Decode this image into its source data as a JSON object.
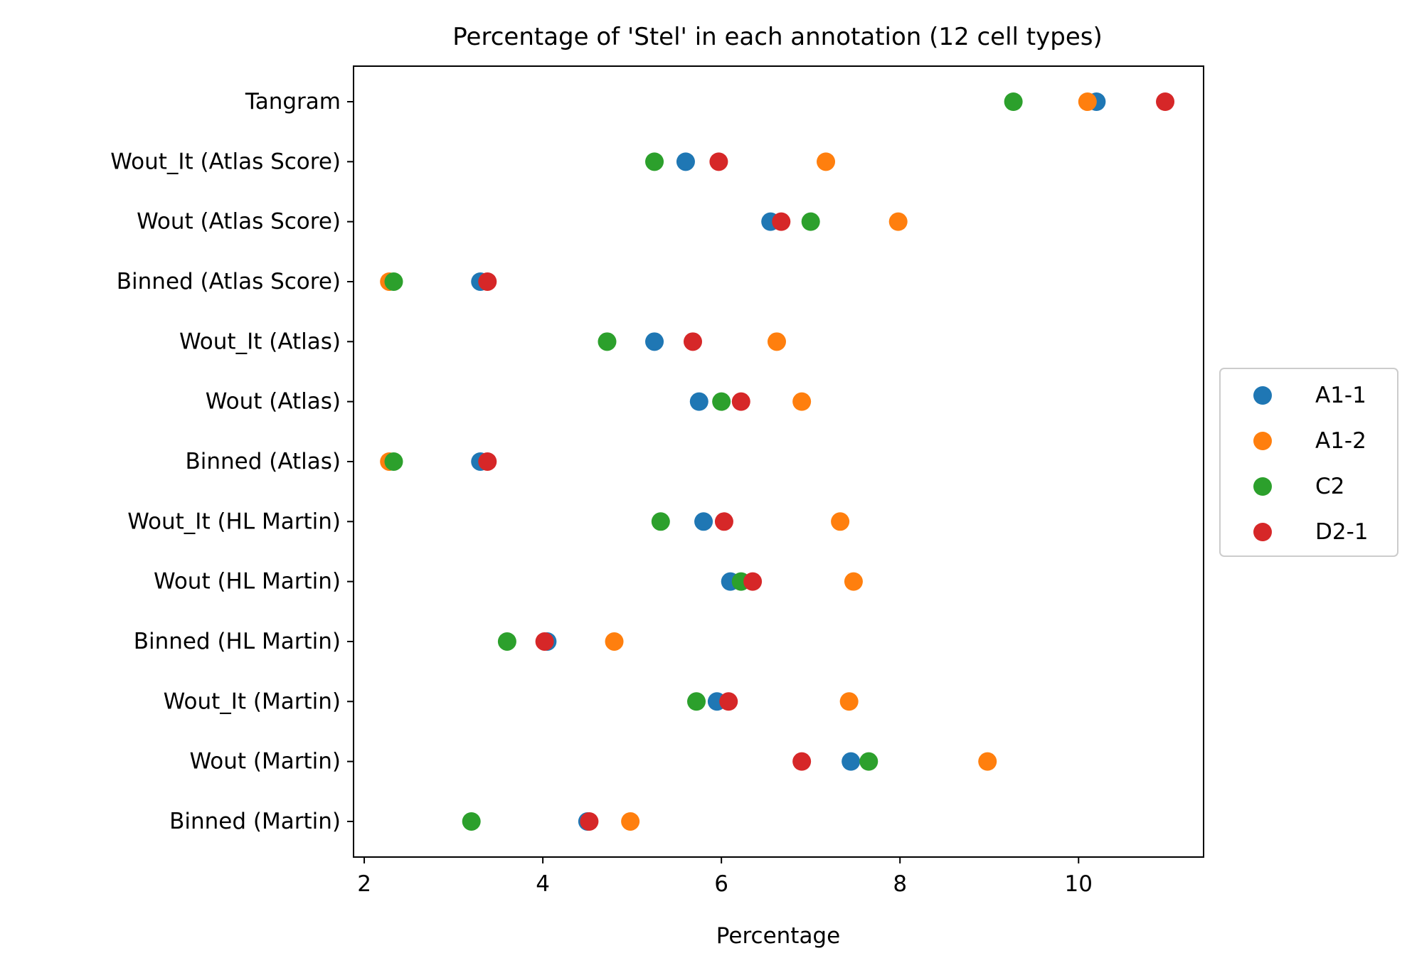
{
  "chart_data": {
    "type": "scatter",
    "title": "Percentage of 'Stel' in each annotation (12 cell types)",
    "xlabel": "Percentage",
    "ylabel": "",
    "xlim": [
      1.88,
      11.4
    ],
    "xticks": [
      2,
      4,
      6,
      8,
      10
    ],
    "grid": false,
    "legend_position": "center-right, outside plot",
    "categories": [
      "Tangram",
      "Wout_It (Atlas Score)",
      "Wout (Atlas Score)",
      "Binned (Atlas Score)",
      "Wout_It (Atlas)",
      "Wout (Atlas)",
      "Binned (Atlas)",
      "Wout_It (HL Martin)",
      "Wout (HL Martin)",
      "Binned (HL Martin)",
      "Wout_It (Martin)",
      "Wout (Martin)",
      "Binned (Martin)"
    ],
    "series": [
      {
        "name": "A1-1",
        "color": "#1f77b4",
        "values": [
          10.2,
          5.6,
          6.55,
          3.3,
          5.25,
          5.75,
          3.3,
          5.8,
          6.1,
          4.05,
          5.95,
          7.45,
          4.5
        ]
      },
      {
        "name": "A1-2",
        "color": "#ff7f0e",
        "values": [
          10.1,
          7.17,
          7.98,
          2.28,
          6.62,
          6.9,
          2.28,
          7.33,
          7.48,
          4.8,
          7.43,
          8.98,
          4.98
        ]
      },
      {
        "name": "C2",
        "color": "#2ca02c",
        "values": [
          9.27,
          5.25,
          7.0,
          2.33,
          4.72,
          6.0,
          2.33,
          5.32,
          6.22,
          3.6,
          5.72,
          7.65,
          3.2
        ]
      },
      {
        "name": "D2-1",
        "color": "#d62728",
        "values": [
          10.97,
          5.97,
          6.67,
          3.38,
          5.68,
          6.22,
          3.38,
          6.03,
          6.35,
          4.02,
          6.08,
          6.9,
          4.52
        ]
      }
    ]
  }
}
